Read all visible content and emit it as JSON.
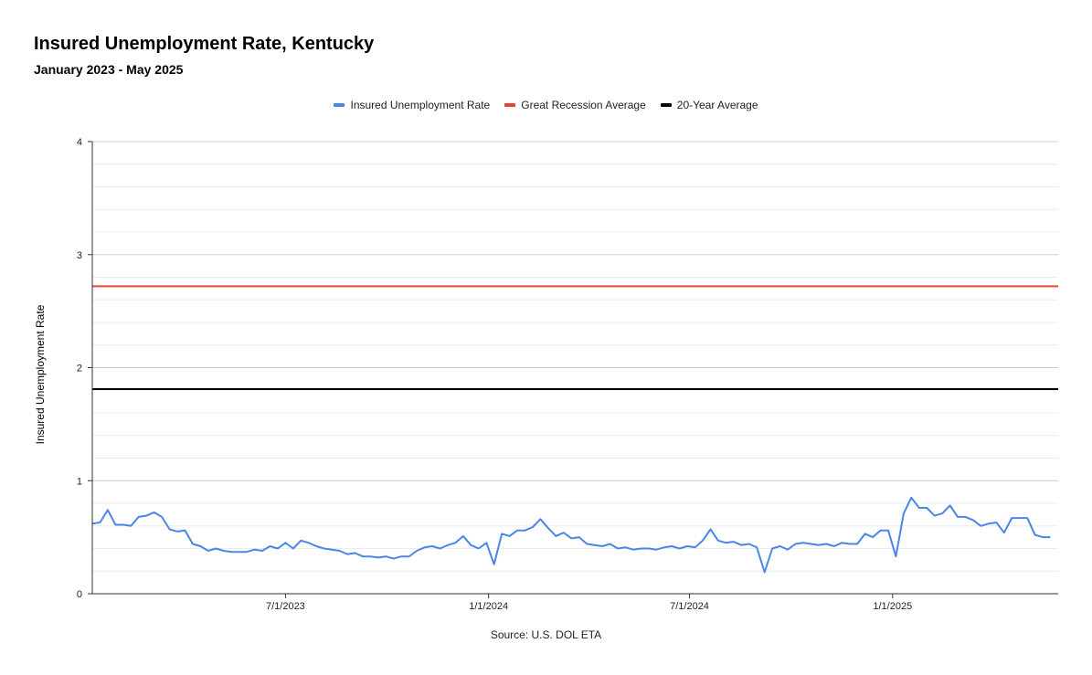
{
  "colors": {
    "rate": "#4a86e8",
    "recession": "#ea4335",
    "twenty_year": "#000000"
  },
  "chart_data": {
    "type": "line",
    "title": "Insured Unemployment Rate, Kentucky",
    "subtitle": "January 2023 - May 2025",
    "ylabel": "Insured Unemployment Rate",
    "xlabel": "Source: U.S. DOL ETA",
    "ylim": [
      0,
      4
    ],
    "xlim": [
      "2023-01-07",
      "2025-05-31"
    ],
    "x_ticks": [
      "7/1/2023",
      "1/1/2024",
      "7/1/2024",
      "1/1/2025"
    ],
    "x_tick_dates": [
      "2023-07-01",
      "2024-01-01",
      "2024-07-01",
      "2025-01-01"
    ],
    "y_ticks": [
      0,
      1,
      2,
      3,
      4
    ],
    "grid": true,
    "legend_position": "top",
    "legend": [
      "Insured Unemployment Rate",
      "Great Recession Average",
      "20-Year Average"
    ],
    "reference_lines": [
      {
        "name": "Great Recession Average",
        "value": 2.72
      },
      {
        "name": "20-Year Average",
        "value": 1.81
      }
    ],
    "series": [
      {
        "name": "Insured Unemployment Rate",
        "start_date": "2023-01-07",
        "frequency": "weekly",
        "values": [
          0.62,
          0.63,
          0.74,
          0.61,
          0.61,
          0.6,
          0.68,
          0.69,
          0.72,
          0.68,
          0.57,
          0.55,
          0.56,
          0.44,
          0.42,
          0.38,
          0.4,
          0.38,
          0.37,
          0.37,
          0.37,
          0.39,
          0.38,
          0.42,
          0.4,
          0.45,
          0.4,
          0.47,
          0.45,
          0.42,
          0.4,
          0.39,
          0.38,
          0.35,
          0.36,
          0.33,
          0.33,
          0.32,
          0.33,
          0.31,
          0.33,
          0.33,
          0.38,
          0.41,
          0.42,
          0.4,
          0.43,
          0.45,
          0.51,
          0.43,
          0.4,
          0.45,
          0.26,
          0.53,
          0.51,
          0.56,
          0.56,
          0.59,
          0.66,
          0.58,
          0.51,
          0.54,
          0.49,
          0.5,
          0.44,
          0.43,
          0.42,
          0.44,
          0.4,
          0.41,
          0.39,
          0.4,
          0.4,
          0.39,
          0.41,
          0.42,
          0.4,
          0.42,
          0.41,
          0.47,
          0.57,
          0.47,
          0.45,
          0.46,
          0.43,
          0.44,
          0.41,
          0.19,
          0.4,
          0.42,
          0.39,
          0.44,
          0.45,
          0.44,
          0.43,
          0.44,
          0.42,
          0.45,
          0.44,
          0.44,
          0.53,
          0.5,
          0.56,
          0.56,
          0.33,
          0.71,
          0.85,
          0.76,
          0.76,
          0.69,
          0.71,
          0.78,
          0.68,
          0.68,
          0.65,
          0.6,
          0.62,
          0.63,
          0.54,
          0.67,
          0.67,
          0.67,
          0.52,
          0.5,
          0.5
        ]
      }
    ]
  }
}
